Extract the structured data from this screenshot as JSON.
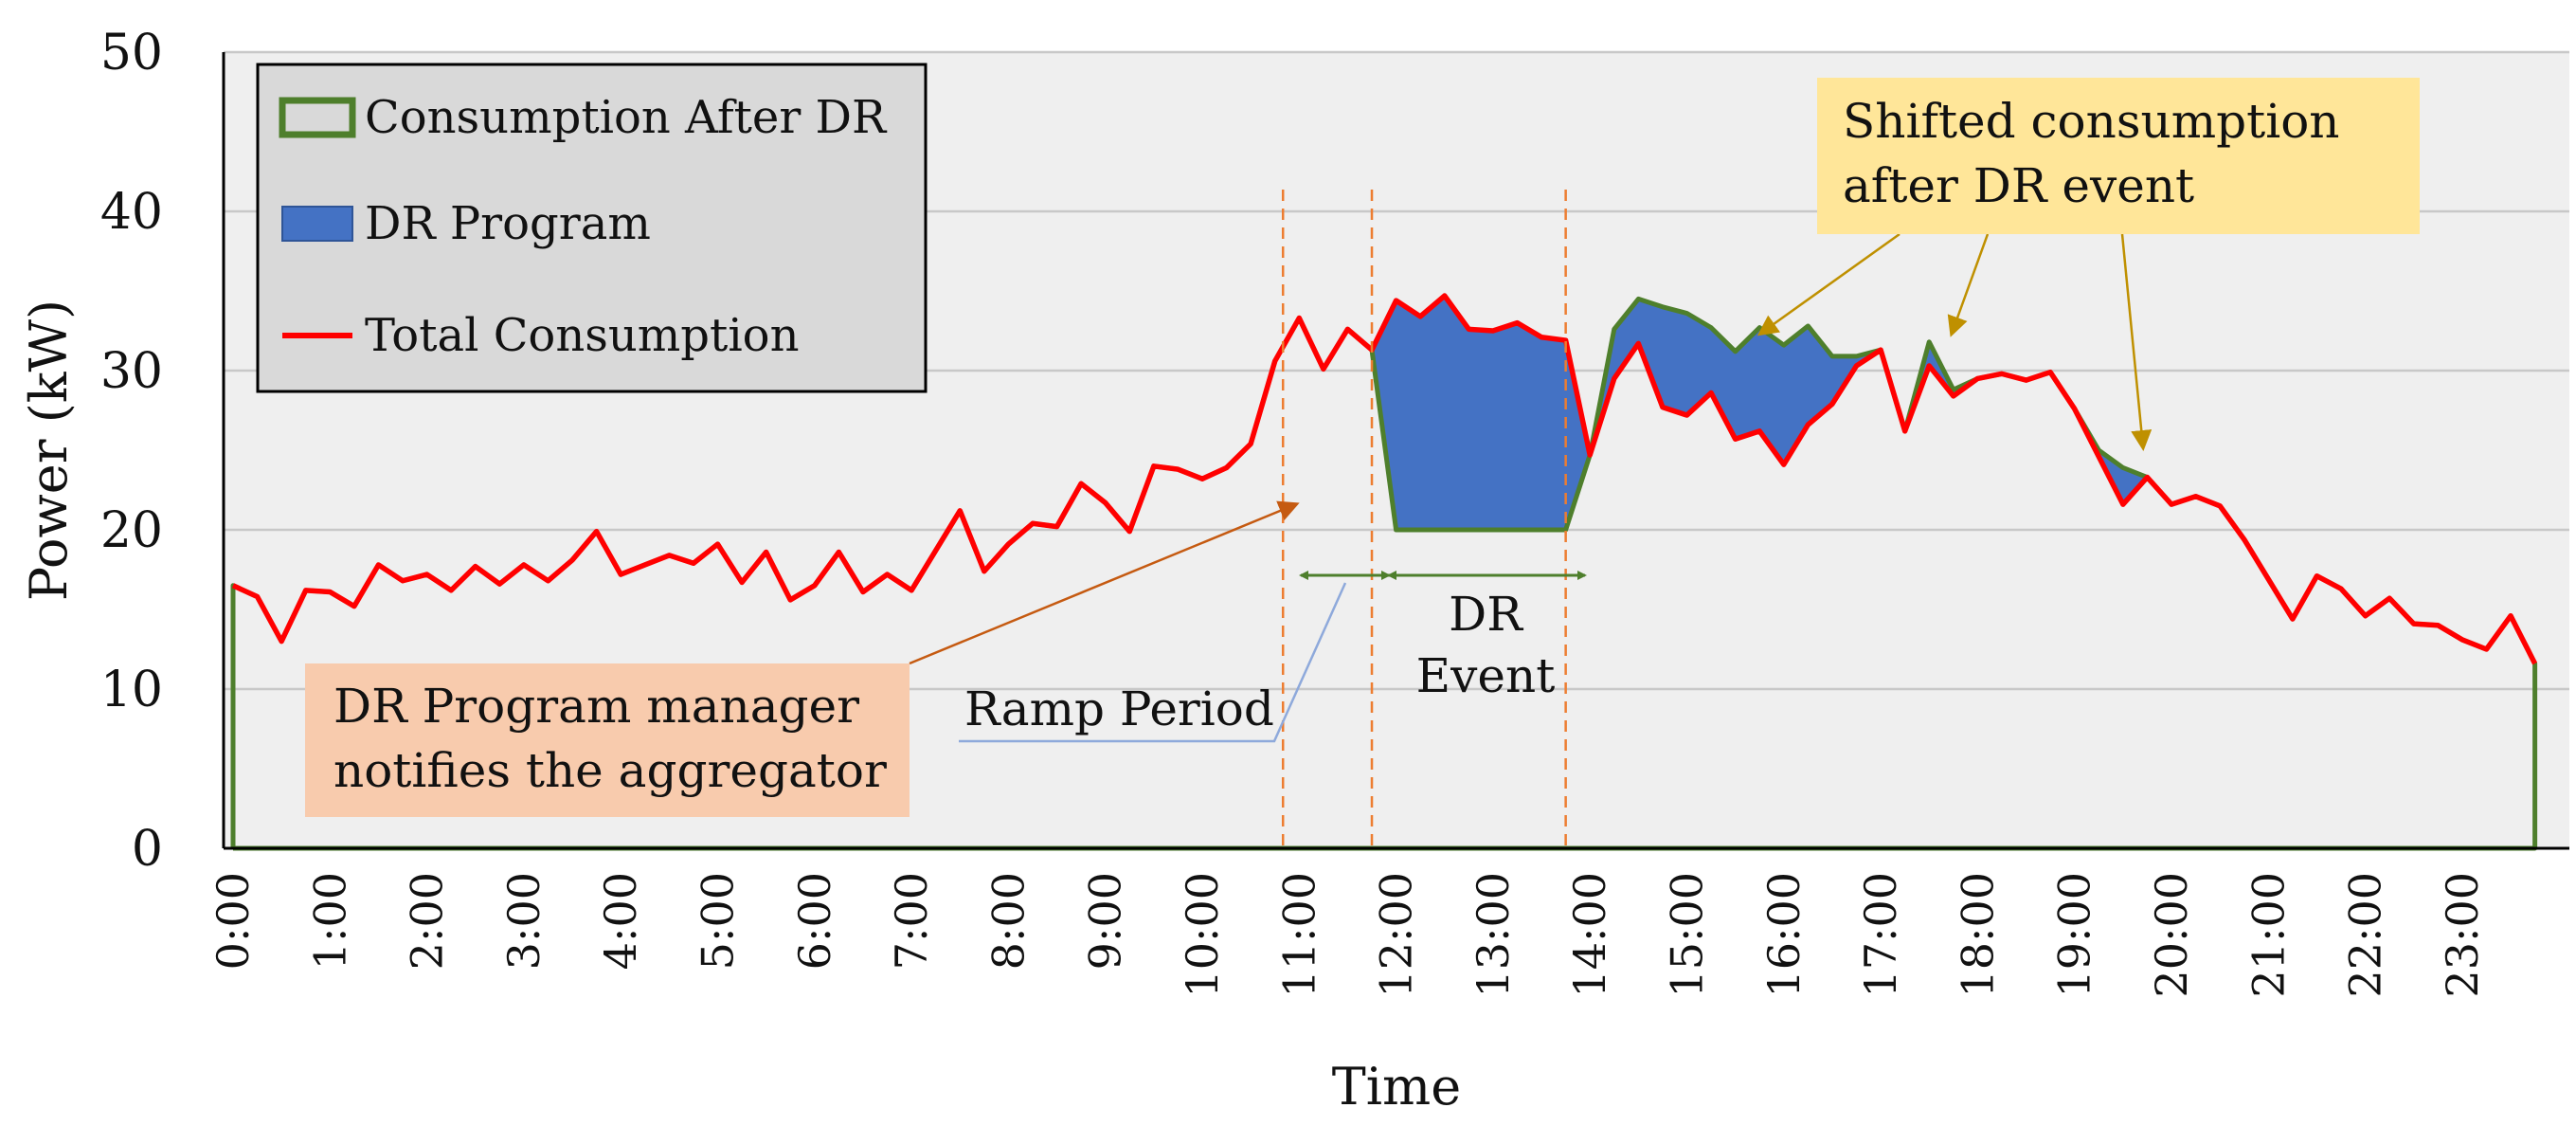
{
  "chart_data": {
    "type": "area",
    "xlabel": "Time",
    "ylabel": "Power (kW)",
    "ylim": [
      0,
      50
    ],
    "y_ticks": [
      "0",
      "10",
      "20",
      "30",
      "40",
      "50"
    ],
    "x_tick_labels": [
      "0:00",
      "1:00",
      "2:00",
      "3:00",
      "4:00",
      "5:00",
      "6:00",
      "7:00",
      "8:00",
      "9:00",
      "10:00",
      "11:00",
      "12:00",
      "13:00",
      "14:00",
      "15:00",
      "16:00",
      "17:00",
      "18:00",
      "19:00",
      "20:00",
      "21:00",
      "22:00",
      "23:00"
    ],
    "legend": {
      "placement": "top-left",
      "items": [
        "Consumption After DR",
        "DR Program",
        "Total Consumption"
      ]
    },
    "series": [
      {
        "name": "Total Consumption",
        "color": "#ff0000",
        "values": [
          16.5,
          15.8,
          13.0,
          16.2,
          16.1,
          15.2,
          17.8,
          16.8,
          17.2,
          16.2,
          17.7,
          16.6,
          17.8,
          16.8,
          18.1,
          19.9,
          17.2,
          17.8,
          18.4,
          17.9,
          19.1,
          16.7,
          18.6,
          15.6,
          16.5,
          18.6,
          16.1,
          17.2,
          16.2,
          18.7,
          21.2,
          17.4,
          19.1,
          20.4,
          20.2,
          22.9,
          21.7,
          19.9,
          24.0,
          23.8,
          23.2,
          23.9,
          25.4,
          30.6,
          33.3,
          30.1,
          32.6,
          31.3,
          34.4,
          33.4,
          34.7,
          32.6,
          32.5,
          33.0,
          32.1,
          31.9,
          24.7,
          29.5,
          31.7,
          27.7,
          27.2,
          28.6,
          25.7,
          26.2,
          24.1,
          26.6,
          27.9,
          30.3,
          31.3,
          26.2,
          30.3,
          28.4,
          29.5,
          29.8,
          29.4,
          29.9,
          27.6,
          24.6,
          21.6,
          23.3,
          21.6,
          22.1,
          21.5,
          19.4,
          16.9,
          14.4,
          17.1,
          16.3,
          14.6,
          15.7,
          14.1,
          14.0,
          13.1,
          12.5,
          14.6,
          11.6
        ]
      },
      {
        "name": "Consumption After DR",
        "color": "#4e7f2c",
        "values": [
          16.5,
          15.8,
          13.0,
          16.2,
          16.1,
          15.2,
          17.8,
          16.8,
          17.2,
          16.2,
          17.7,
          16.6,
          17.8,
          16.8,
          18.1,
          19.9,
          17.2,
          17.8,
          18.4,
          17.9,
          19.1,
          16.7,
          18.6,
          15.6,
          16.5,
          18.6,
          16.1,
          17.2,
          16.2,
          18.7,
          21.2,
          17.4,
          19.1,
          20.4,
          20.2,
          22.9,
          21.7,
          19.9,
          24.0,
          23.8,
          23.2,
          23.9,
          25.4,
          30.6,
          33.3,
          30.1,
          32.6,
          31.3,
          20.0,
          20.0,
          20.0,
          20.0,
          20.0,
          20.0,
          20.0,
          20.0,
          24.7,
          32.6,
          34.5,
          34.0,
          33.6,
          32.7,
          31.2,
          32.7,
          31.6,
          32.8,
          30.9,
          30.9,
          31.3,
          26.2,
          31.8,
          28.8,
          29.5,
          29.8,
          29.4,
          29.9,
          27.6,
          25.0,
          23.9,
          23.3,
          21.6,
          22.1,
          21.5,
          19.4,
          16.9,
          14.4,
          17.1,
          16.3,
          14.6,
          15.7,
          14.1,
          14.0,
          13.1,
          12.5,
          14.6,
          11.6
        ]
      }
    ],
    "vertical_markers_hours": [
      10.833,
      11.75,
      13.75
    ],
    "annotations": [
      {
        "name": "ramp-period",
        "lines": [
          "Ramp Period"
        ]
      },
      {
        "name": "dr-event",
        "lines": [
          "DR",
          "Event"
        ]
      },
      {
        "name": "manager-note",
        "lines": [
          "DR Program manager",
          "notifies the aggregator"
        ]
      },
      {
        "name": "shifted-note",
        "lines": [
          "Shifted consumption",
          "after DR event"
        ]
      }
    ],
    "colors": {
      "dr_fill": "#4472c4",
      "total_line": "#ff0000",
      "after_line": "#4e7f2c",
      "plot_bg": "#efefef",
      "legend_bg": "#d9d9d9",
      "marker": "#ed7d31",
      "manager_box": "#f8cbad",
      "shifted_box": "#ffe699",
      "manager_arrow": "#c55a11",
      "shifted_arrow": "#bf9000",
      "ramp_leader": "#8ea9db"
    }
  }
}
